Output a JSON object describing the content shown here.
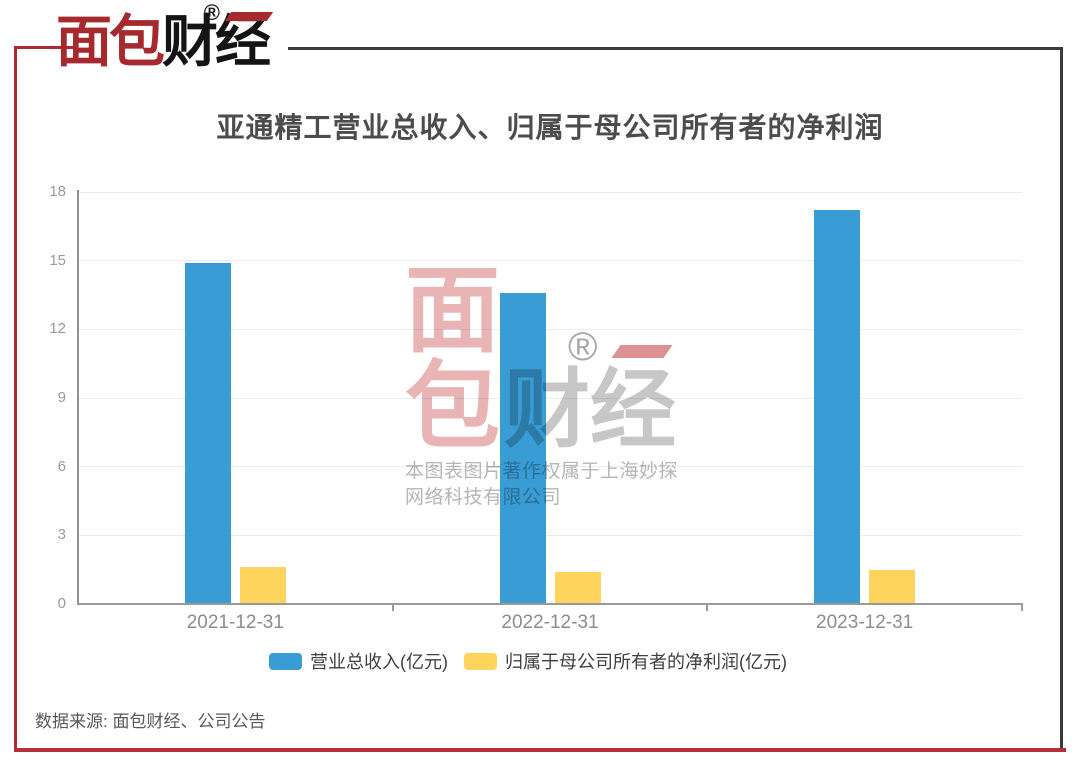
{
  "brand": {
    "logo_red_text": "面包",
    "logo_black_text": "财经",
    "registered_mark": "®"
  },
  "watermark": {
    "stack_top_char": "面",
    "stack_bottom_char": "包",
    "right_text": "财经",
    "registered_mark": "®",
    "copyright_line1": "本图表图片著作权属于上海妙探",
    "copyright_line2": "网络科技有限公司"
  },
  "footer": {
    "source": "数据来源: 面包财经、公司公告"
  },
  "colors": {
    "revenue_blue": "#3a9cd5",
    "profit_yellow": "#fed45c",
    "frame_red": "#ad2a31",
    "frame_dark": "#3b3b3b",
    "grid": "#e8edf6",
    "axis": "#9a9a9a",
    "title_text": "#4c4c4c"
  },
  "chart_data": {
    "type": "bar",
    "title": "亚通精工营业总收入、归属于母公司所有者的净利润",
    "categories": [
      "2021-12-31",
      "2022-12-31",
      "2023-12-31"
    ],
    "series": [
      {
        "name": "营业总收入(亿元)",
        "color": "#3a9cd5",
        "values": [
          14.9,
          13.6,
          17.2
        ]
      },
      {
        "name": "归属于母公司所有者的净利润(亿元)",
        "color": "#fed45c",
        "values": [
          1.6,
          1.4,
          1.5
        ]
      }
    ],
    "xlabel": "",
    "ylabel": "",
    "ylim": [
      0,
      18
    ],
    "ytick_step": 3,
    "yticks": [
      0,
      3,
      6,
      9,
      12,
      15,
      18
    ],
    "grid": true,
    "legend_position": "bottom"
  }
}
